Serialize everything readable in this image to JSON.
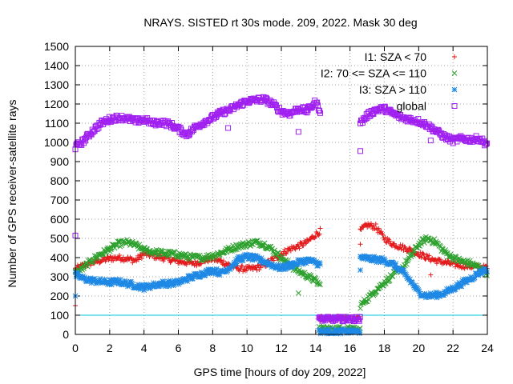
{
  "chart_data": {
    "type": "scatter",
    "title": "NRAYS. SISTED rt 30s mode. 209, 2022. Mask 30 deg",
    "xlabel": "GPS time [hours of doy 209, 2022]",
    "ylabel": "Number of GPS receiver-satellite rays",
    "xlim": [
      0,
      24
    ],
    "ylim": [
      0,
      1500
    ],
    "xticks": [
      "0",
      "2",
      "4",
      "6",
      "8",
      "10",
      "12",
      "14",
      "16",
      "18",
      "20",
      "22",
      "24"
    ],
    "yticks": [
      "0",
      "100",
      "200",
      "300",
      "400",
      "500",
      "600",
      "700",
      "800",
      "900",
      "1000",
      "1100",
      "1200",
      "1300",
      "1400",
      "1500"
    ],
    "grid": true,
    "legend_position": "top-right",
    "reference_line": {
      "y": 100,
      "color": "#00c8dc"
    },
    "series": [
      {
        "name": "I1: SZA < 70",
        "marker": "+",
        "color": "#e41a1c",
        "points": [
          [
            0,
            340
          ],
          [
            0.5,
            360
          ],
          [
            1,
            375
          ],
          [
            1.5,
            385
          ],
          [
            2,
            395
          ],
          [
            2.5,
            400
          ],
          [
            3,
            395
          ],
          [
            3.5,
            385
          ],
          [
            4,
            420
          ],
          [
            4.5,
            410
          ],
          [
            5,
            400
          ],
          [
            5.5,
            390
          ],
          [
            6,
            380
          ],
          [
            6.5,
            375
          ],
          [
            7,
            370
          ],
          [
            7.5,
            385
          ],
          [
            8,
            395
          ],
          [
            8.5,
            380
          ],
          [
            9,
            360
          ],
          [
            9.5,
            345
          ],
          [
            10,
            340
          ],
          [
            10.5,
            345
          ],
          [
            11,
            360
          ],
          [
            11.5,
            390
          ],
          [
            12,
            420
          ],
          [
            12.5,
            445
          ],
          [
            13,
            460
          ],
          [
            13.5,
            480
          ],
          [
            14,
            520
          ],
          [
            14.3,
            540
          ],
          [
            16.6,
            540
          ],
          [
            17,
            570
          ],
          [
            17.5,
            560
          ],
          [
            18,
            500
          ],
          [
            18.5,
            470
          ],
          [
            19,
            455
          ],
          [
            19.5,
            440
          ],
          [
            20,
            420
          ],
          [
            20.5,
            400
          ],
          [
            21,
            385
          ],
          [
            21.5,
            375
          ],
          [
            22,
            365
          ],
          [
            22.5,
            360
          ],
          [
            23,
            355
          ],
          [
            23.5,
            350
          ],
          [
            24,
            345
          ]
        ],
        "outliers": [
          [
            0,
            150
          ],
          [
            16.6,
            470
          ],
          [
            20.7,
            310
          ]
        ]
      },
      {
        "name": "I2: 70 <= SZA <= 110",
        "marker": "x",
        "color": "#2ca02c",
        "points": [
          [
            0,
            320
          ],
          [
            0.5,
            350
          ],
          [
            1,
            390
          ],
          [
            1.5,
            420
          ],
          [
            2,
            445
          ],
          [
            2.5,
            470
          ],
          [
            3,
            480
          ],
          [
            3.5,
            465
          ],
          [
            4,
            440
          ],
          [
            4.5,
            430
          ],
          [
            5,
            425
          ],
          [
            5.5,
            420
          ],
          [
            6,
            415
          ],
          [
            6.5,
            405
          ],
          [
            7,
            400
          ],
          [
            7.5,
            400
          ],
          [
            8,
            410
          ],
          [
            8.5,
            425
          ],
          [
            9,
            445
          ],
          [
            9.5,
            460
          ],
          [
            10,
            470
          ],
          [
            10.5,
            480
          ],
          [
            11,
            470
          ],
          [
            11.5,
            440
          ],
          [
            12,
            400
          ],
          [
            12.5,
            360
          ],
          [
            13,
            330
          ],
          [
            13.5,
            305
          ],
          [
            14,
            280
          ],
          [
            14.3,
            250
          ],
          [
            16.6,
            150
          ],
          [
            17,
            185
          ],
          [
            17.5,
            230
          ],
          [
            18,
            270
          ],
          [
            18.5,
            310
          ],
          [
            19,
            340
          ],
          [
            19.5,
            400
          ],
          [
            20,
            470
          ],
          [
            20.5,
            500
          ],
          [
            21,
            480
          ],
          [
            21.5,
            430
          ],
          [
            22,
            400
          ],
          [
            22.5,
            380
          ],
          [
            23,
            370
          ],
          [
            23.5,
            350
          ],
          [
            24,
            320
          ]
        ],
        "outliers": [
          [
            13,
            215
          ]
        ]
      },
      {
        "name": "I3: SZA > 110",
        "marker": "*",
        "color": "#1e88e5",
        "points": [
          [
            0,
            310
          ],
          [
            0.5,
            290
          ],
          [
            1,
            280
          ],
          [
            1.5,
            275
          ],
          [
            2,
            270
          ],
          [
            2.5,
            275
          ],
          [
            3,
            265
          ],
          [
            3.5,
            255
          ],
          [
            4,
            245
          ],
          [
            4.5,
            255
          ],
          [
            5,
            265
          ],
          [
            5.5,
            265
          ],
          [
            6,
            270
          ],
          [
            6.5,
            290
          ],
          [
            7,
            305
          ],
          [
            7.5,
            320
          ],
          [
            8,
            335
          ],
          [
            8.5,
            320
          ],
          [
            9,
            350
          ],
          [
            9.5,
            390
          ],
          [
            10,
            405
          ],
          [
            10.5,
            395
          ],
          [
            11,
            380
          ],
          [
            11.5,
            360
          ],
          [
            12,
            345
          ],
          [
            12.5,
            360
          ],
          [
            13,
            375
          ],
          [
            13.5,
            385
          ],
          [
            14,
            375
          ],
          [
            14.3,
            360
          ],
          [
            16.6,
            400
          ],
          [
            17,
            395
          ],
          [
            17.5,
            390
          ],
          [
            18,
            385
          ],
          [
            18.5,
            365
          ],
          [
            19,
            330
          ],
          [
            19.5,
            280
          ],
          [
            20,
            220
          ],
          [
            20.5,
            200
          ],
          [
            21,
            205
          ],
          [
            21.5,
            215
          ],
          [
            22,
            240
          ],
          [
            22.5,
            265
          ],
          [
            23,
            290
          ],
          [
            23.5,
            320
          ],
          [
            24,
            340
          ]
        ],
        "outliers": [
          [
            0,
            200
          ],
          [
            16.6,
            335
          ]
        ]
      },
      {
        "name": "global",
        "marker": "square",
        "color": "#a020f0",
        "points": [
          [
            0,
            975
          ],
          [
            0.5,
            1010
          ],
          [
            1,
            1060
          ],
          [
            1.5,
            1100
          ],
          [
            2,
            1120
          ],
          [
            2.5,
            1130
          ],
          [
            3,
            1125
          ],
          [
            3.5,
            1110
          ],
          [
            4,
            1120
          ],
          [
            4.5,
            1100
          ],
          [
            5,
            1105
          ],
          [
            5.5,
            1095
          ],
          [
            6,
            1070
          ],
          [
            6.5,
            1040
          ],
          [
            7,
            1080
          ],
          [
            7.5,
            1105
          ],
          [
            8,
            1130
          ],
          [
            8.5,
            1155
          ],
          [
            9,
            1170
          ],
          [
            9.5,
            1195
          ],
          [
            10,
            1215
          ],
          [
            10.5,
            1220
          ],
          [
            11,
            1225
          ],
          [
            11.5,
            1200
          ],
          [
            12,
            1160
          ],
          [
            12.5,
            1150
          ],
          [
            13,
            1175
          ],
          [
            13.5,
            1165
          ],
          [
            14,
            1210
          ],
          [
            14.3,
            1160
          ],
          [
            16.6,
            1100
          ],
          [
            17,
            1140
          ],
          [
            17.5,
            1170
          ],
          [
            18,
            1175
          ],
          [
            18.5,
            1150
          ],
          [
            19,
            1130
          ],
          [
            19.5,
            1120
          ],
          [
            20,
            1110
          ],
          [
            20.5,
            1090
          ],
          [
            21,
            1060
          ],
          [
            21.5,
            1030
          ],
          [
            22,
            1010
          ],
          [
            22.5,
            1020
          ],
          [
            23,
            1015
          ],
          [
            23.5,
            1020
          ],
          [
            24,
            990
          ]
        ],
        "outliers": [
          [
            0,
            515
          ],
          [
            13,
            1055
          ],
          [
            16.6,
            955
          ],
          [
            20.7,
            1010
          ],
          [
            8.9,
            1075
          ]
        ]
      }
    ],
    "gap_segment": {
      "x_range": [
        14.2,
        16.6
      ],
      "series_levels": [
        {
          "series": "I1: SZA < 70",
          "level": 85
        },
        {
          "series": "I2: 70 <= SZA <= 110",
          "level": 30
        },
        {
          "series": "I3: SZA > 110",
          "level": 15
        },
        {
          "series": "global",
          "level": 80
        }
      ]
    }
  }
}
